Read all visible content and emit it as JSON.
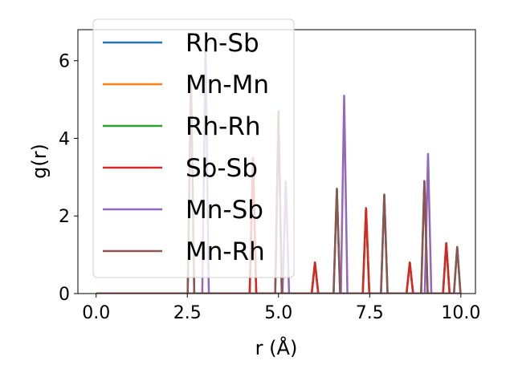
{
  "chart_data": {
    "type": "line",
    "title": "",
    "xlabel": "r (Å)",
    "ylabel": "g(r)",
    "xlim": [
      -0.5,
      10.4
    ],
    "ylim": [
      0,
      6.8
    ],
    "xticks": [
      0.0,
      2.5,
      5.0,
      7.5,
      10.0
    ],
    "xtick_labels": [
      "0.0",
      "2.5",
      "5.0",
      "7.5",
      "10.0"
    ],
    "yticks": [
      0,
      2,
      4,
      6
    ],
    "ytick_labels": [
      "0",
      "2",
      "4",
      "6"
    ],
    "grid": false,
    "legend": "upper-left",
    "series": [
      {
        "name": "Rh-Sb",
        "color": "#1f77b4",
        "peaks": [
          [
            2.6,
            5.6
          ],
          [
            5.0,
            4.7
          ],
          [
            6.6,
            2.7
          ],
          [
            7.9,
            2.55
          ],
          [
            9.0,
            2.9
          ],
          [
            9.9,
            1.2
          ]
        ]
      },
      {
        "name": "Mn-Mn",
        "color": "#ff7f0e",
        "peaks": [
          [
            4.3,
            3.5
          ],
          [
            6.0,
            0.8
          ],
          [
            7.4,
            2.2
          ],
          [
            8.6,
            0.8
          ],
          [
            9.6,
            1.3
          ]
        ]
      },
      {
        "name": "Rh-Rh",
        "color": "#2ca02c",
        "peaks": [
          [
            4.3,
            3.5
          ],
          [
            6.0,
            0.8
          ],
          [
            7.4,
            2.2
          ],
          [
            8.6,
            0.8
          ],
          [
            9.6,
            1.3
          ]
        ]
      },
      {
        "name": "Sb-Sb",
        "color": "#d62728",
        "peaks": [
          [
            4.3,
            3.5
          ],
          [
            6.0,
            0.8
          ],
          [
            7.4,
            2.2
          ],
          [
            8.6,
            0.8
          ],
          [
            9.6,
            1.3
          ]
        ]
      },
      {
        "name": "Mn-Sb",
        "color": "#9467bd",
        "peaks": [
          [
            3.0,
            6.3
          ],
          [
            5.2,
            2.9
          ],
          [
            6.8,
            5.1
          ],
          [
            9.1,
            3.6
          ]
        ]
      },
      {
        "name": "Mn-Rh",
        "color": "#8c564b",
        "peaks": [
          [
            2.6,
            5.6
          ],
          [
            5.0,
            4.7
          ],
          [
            6.6,
            2.7
          ],
          [
            7.9,
            2.55
          ],
          [
            9.0,
            2.9
          ],
          [
            9.9,
            1.2
          ]
        ]
      }
    ]
  }
}
